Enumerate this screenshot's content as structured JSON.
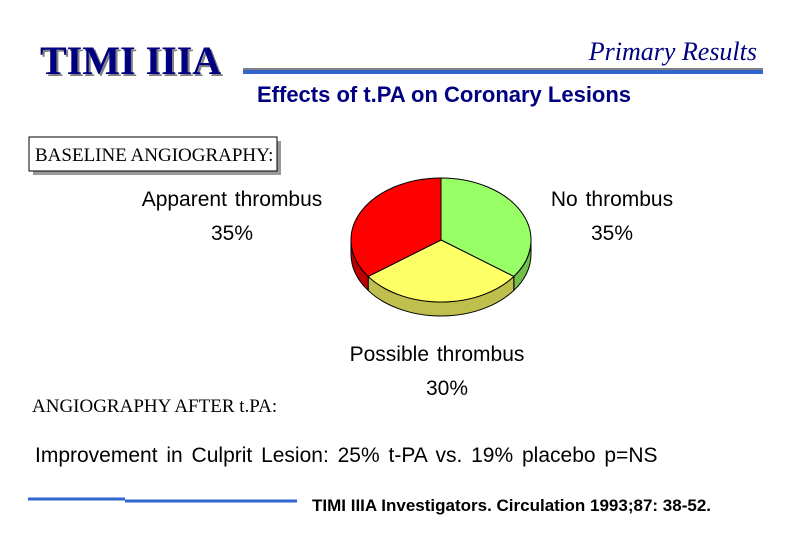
{
  "header": {
    "title": "TIMI IIIA",
    "tagline": "Primary Results",
    "subtitle": "Effects of t.PA on Coronary Lesions"
  },
  "sections": [
    "BASELINE ANGIOGRAPHY:",
    "ANGIOGRAPHY AFTER t.PA:"
  ],
  "chart_data": {
    "type": "pie",
    "categories": [
      "No thrombus",
      "Possible thrombus",
      "Apparent thrombus"
    ],
    "values": [
      35,
      30,
      35
    ],
    "value_labels": [
      "35%",
      "30%",
      "35%"
    ],
    "colors": [
      "#99ff66",
      "#ffff66",
      "#ff0000"
    ]
  },
  "note": "Improvement in Culprit Lesion:  25% t-PA vs. 19% placebo p=NS",
  "citation": "TIMI IIIA Investigators. Circulation 1993;87: 38-52."
}
